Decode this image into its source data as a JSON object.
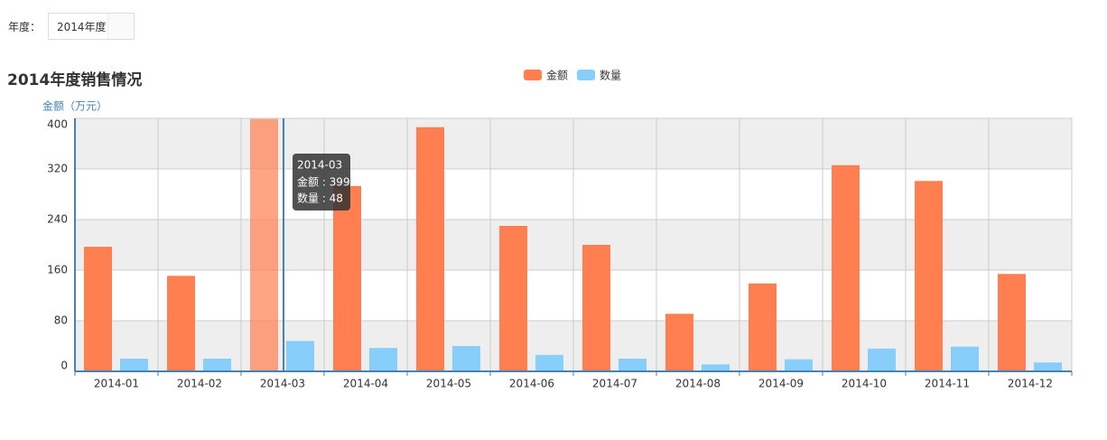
{
  "filter": {
    "label": "年度：",
    "value": "2014年度"
  },
  "chart_data": {
    "type": "bar",
    "title": "2014年度销售情况",
    "y_label": "金额（万元）",
    "categories": [
      "2014-01",
      "2014-02",
      "2014-03",
      "2014-04",
      "2014-05",
      "2014-06",
      "2014-07",
      "2014-08",
      "2014-09",
      "2014-10",
      "2014-11",
      "2014-12"
    ],
    "series": [
      {
        "name": "金额",
        "color": "#ff7f50",
        "values": [
          197,
          151,
          399,
          293,
          386,
          230,
          200,
          91,
          139,
          326,
          301,
          154
        ]
      },
      {
        "name": "数量",
        "color": "#87cefa",
        "values": [
          20,
          20,
          48,
          37,
          40,
          26,
          20,
          11,
          19,
          36,
          39,
          14
        ]
      }
    ],
    "ylim": [
      0,
      400
    ],
    "yticks": [
      0,
      80,
      160,
      240,
      320,
      400
    ],
    "grid": true,
    "tooltip": {
      "category": "2014-03",
      "lines": [
        "金额 : 399",
        "数量 : 48"
      ]
    }
  }
}
